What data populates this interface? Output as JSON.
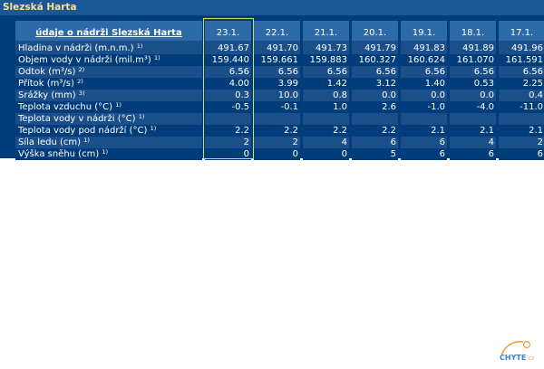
{
  "title": "Slezská Harta",
  "table": {
    "header_label": "údaje o nádrži Slezská Harta",
    "dates": [
      "23.1.",
      "22.1.",
      "21.1.",
      "20.1.",
      "19.1.",
      "18.1.",
      "17.1."
    ],
    "rows": [
      {
        "label": "Hladina v nádrži (m.n.m.)",
        "note": "1)",
        "values": [
          "491.67",
          "491.70",
          "491.73",
          "491.79",
          "491.83",
          "491.89",
          "491.96"
        ]
      },
      {
        "label": "Objem vody v nádrži (mil.m³)",
        "note": "1)",
        "values": [
          "159.440",
          "159.661",
          "159.883",
          "160.327",
          "160.624",
          "161.070",
          "161.591"
        ]
      },
      {
        "label": "Odtok (m³/s)",
        "note": "2)",
        "values": [
          "6.56",
          "6.56",
          "6.56",
          "6.56",
          "6.56",
          "6.56",
          "6.56"
        ]
      },
      {
        "label": "Přítok (m³/s)",
        "note": "2)",
        "values": [
          "4.00",
          "3.99",
          "1.42",
          "3.12",
          "1.40",
          "0.53",
          "2.25"
        ]
      },
      {
        "label": "Srážky (mm)",
        "note": "3)",
        "values": [
          "0.3",
          "10.0",
          "0.8",
          "0.0",
          "0.0",
          "0.0",
          "0.4"
        ]
      },
      {
        "label": "Teplota vzduchu (°C)",
        "note": "1)",
        "values": [
          "-0.5",
          "-0.1",
          "1.0",
          "2.6",
          "-1.0",
          "-4.0",
          "-11.0"
        ]
      },
      {
        "label": "Teplota vody v nádrži (°C)",
        "note": "1)",
        "values": [
          "",
          "",
          "",
          "",
          "",
          "",
          ""
        ]
      },
      {
        "label": "Teplota vody pod nádrží (°C)",
        "note": "1)",
        "values": [
          "2.2",
          "2.2",
          "2.2",
          "2.2",
          "2.1",
          "2.1",
          "2.1"
        ]
      },
      {
        "label": "Síla ledu (cm)",
        "note": "1)",
        "values": [
          "2",
          "2",
          "4",
          "6",
          "6",
          "4",
          "2"
        ]
      },
      {
        "label": "Výška sněhu (cm)",
        "note": "1)",
        "values": [
          "0",
          "0",
          "0",
          "5",
          "6",
          "6",
          "6"
        ]
      }
    ]
  },
  "logo": {
    "text": "CHYTE",
    "suffix": ".cz"
  },
  "colors": {
    "panel": "#003d7a",
    "title_bar": "#1a5796",
    "title_text": "#ffe08a",
    "header_cell": "#2e6aa8",
    "stripe": "#1a4f8a",
    "highlight_border": "#c8e06a"
  }
}
